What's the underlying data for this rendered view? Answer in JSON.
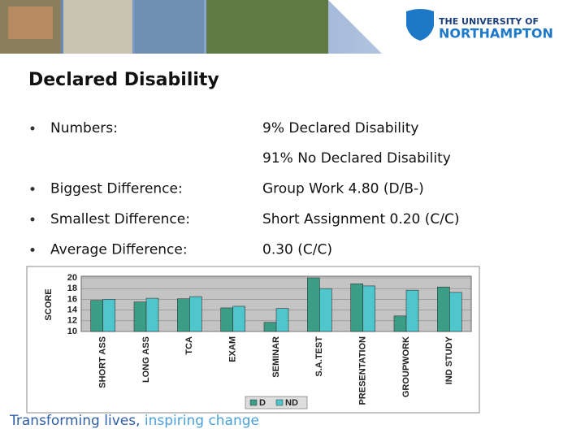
{
  "header": {
    "logo_line1": "THE UNIVERSITY OF",
    "logo_line2": "NORTHAMPTON"
  },
  "title": "Declared Disability",
  "rows": [
    {
      "label": "Numbers:",
      "values": [
        "9% Declared Disability",
        "91% No Declared Disability"
      ]
    },
    {
      "label": "Biggest Difference:",
      "values": [
        "Group Work 4.80 (D/B-)"
      ]
    },
    {
      "label": "Smallest Difference:",
      "values": [
        "Short Assignment 0.20 (C/C)"
      ]
    },
    {
      "label": "Average Difference:",
      "values": [
        "0.30 (C/C)"
      ]
    }
  ],
  "chart_data": {
    "type": "bar",
    "y_label": "SCORE",
    "categories": [
      "SHORT ASS",
      "LONG ASS",
      "TCA",
      "EXAM",
      "SEMINAR",
      "S.A.TEST",
      "PRESENTATION",
      "GROUPWORK",
      "IND STUDY"
    ],
    "series": [
      {
        "name": "D",
        "color": "#3a9e86",
        "values": [
          15.8,
          15.5,
          16.1,
          14.4,
          11.7,
          20.0,
          18.9,
          12.9,
          18.3
        ]
      },
      {
        "name": "ND",
        "color": "#4ec6cc",
        "values": [
          16.0,
          16.2,
          16.5,
          14.7,
          14.3,
          18.0,
          18.5,
          17.7,
          17.3
        ]
      }
    ],
    "ylim": [
      10,
      20
    ],
    "yticks": [
      10,
      12,
      14,
      16,
      18,
      20
    ],
    "grid": true,
    "legend": "bottom"
  },
  "footer": {
    "tagline_1": "Transforming lives,",
    "tagline_2": "inspiring change"
  }
}
